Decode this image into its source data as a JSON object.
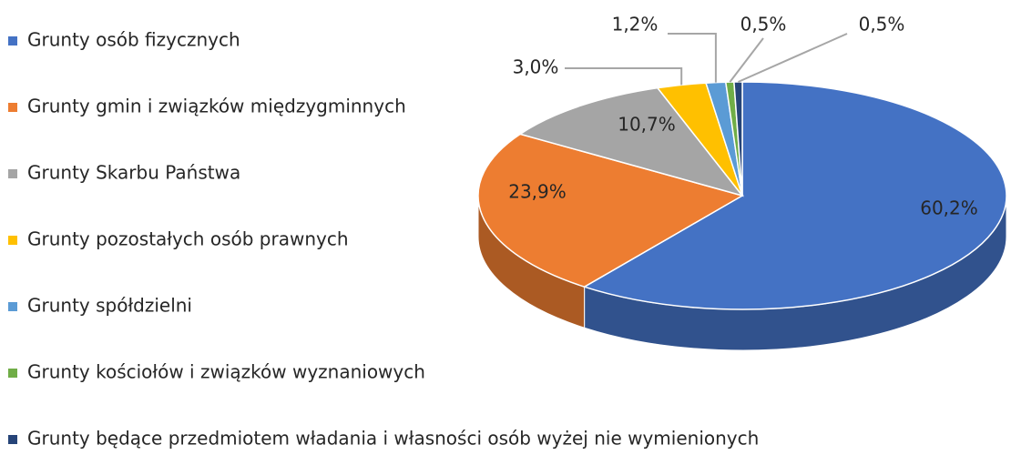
{
  "chart_data": {
    "type": "pie",
    "categories": [
      "Grunty osób fizycznych",
      "Grunty gmin i związków międzygminnych",
      "Grunty Skarbu Państwa",
      "Grunty pozostałych osób prawnych",
      "Grunty spółdzielni",
      "Grunty kościołów i związków wyznaniowych",
      "Grunty będące przedmiotem władania i własności osób wyżej nie wymienionych"
    ],
    "values": [
      60.2,
      23.9,
      10.7,
      3.0,
      1.2,
      0.5,
      0.5
    ],
    "value_labels": [
      "60,2%",
      "23,9%",
      "10,7%",
      "3,0%",
      "1,2%",
      "0,5%",
      "0,5%"
    ],
    "colors": [
      "#4472c4",
      "#ed7d31",
      "#a5a5a5",
      "#ffc000",
      "#5b9bd5",
      "#70ad47",
      "#264478"
    ],
    "legend": "left"
  }
}
